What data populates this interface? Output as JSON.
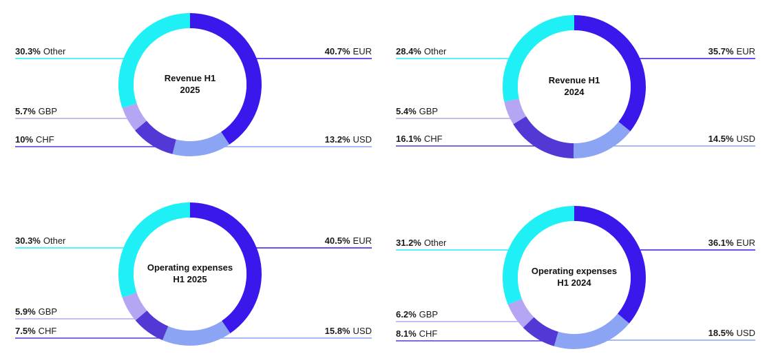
{
  "colors": {
    "EUR": "#3a17ea",
    "USD": "#8ba4f3",
    "CHF": "#5338d6",
    "GBP": "#b6a5f2",
    "Other": "#1ef0f5"
  },
  "chart_data": [
    {
      "type": "pie",
      "title_line1": "Revenue H1",
      "title_line2": "2025",
      "slices": [
        {
          "name": "EUR",
          "value": 40.7,
          "label": "40.7%"
        },
        {
          "name": "USD",
          "value": 13.2,
          "label": "13.2%"
        },
        {
          "name": "CHF",
          "value": 10,
          "label": "10%"
        },
        {
          "name": "GBP",
          "value": 5.7,
          "label": "5.7%"
        },
        {
          "name": "Other",
          "value": 30.3,
          "label": "30.3%"
        }
      ]
    },
    {
      "type": "pie",
      "title_line1": "Revenue H1",
      "title_line2": "2024",
      "slices": [
        {
          "name": "EUR",
          "value": 35.7,
          "label": "35.7%"
        },
        {
          "name": "USD",
          "value": 14.5,
          "label": "14.5%"
        },
        {
          "name": "CHF",
          "value": 16.1,
          "label": "16.1%"
        },
        {
          "name": "GBP",
          "value": 5.4,
          "label": "5.4%"
        },
        {
          "name": "Other",
          "value": 28.4,
          "label": "28.4%"
        }
      ]
    },
    {
      "type": "pie",
      "title_line1": "Operating expenses",
      "title_line2": "H1 2025",
      "slices": [
        {
          "name": "EUR",
          "value": 40.5,
          "label": "40.5%"
        },
        {
          "name": "USD",
          "value": 15.8,
          "label": "15.8%"
        },
        {
          "name": "CHF",
          "value": 7.5,
          "label": "7.5%"
        },
        {
          "name": "GBP",
          "value": 5.9,
          "label": "5.9%"
        },
        {
          "name": "Other",
          "value": 30.3,
          "label": "30.3%"
        }
      ]
    },
    {
      "type": "pie",
      "title_line1": "Operating expenses",
      "title_line2": "H1 2024",
      "slices": [
        {
          "name": "EUR",
          "value": 36.1,
          "label": "36.1%"
        },
        {
          "name": "USD",
          "value": 18.5,
          "label": "18.5%"
        },
        {
          "name": "CHF",
          "value": 8.1,
          "label": "8.1%"
        },
        {
          "name": "GBP",
          "value": 6.2,
          "label": "6.2%"
        },
        {
          "name": "Other",
          "value": 31.2,
          "label": "31.2%"
        }
      ]
    }
  ]
}
